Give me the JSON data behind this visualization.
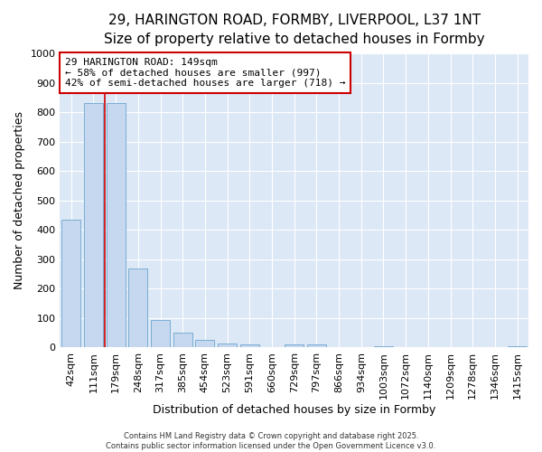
{
  "title_line1": "29, HARINGTON ROAD, FORMBY, LIVERPOOL, L37 1NT",
  "title_line2": "Size of property relative to detached houses in Formby",
  "categories": [
    "42sqm",
    "111sqm",
    "179sqm",
    "248sqm",
    "317sqm",
    "385sqm",
    "454sqm",
    "523sqm",
    "591sqm",
    "660sqm",
    "729sqm",
    "797sqm",
    "866sqm",
    "934sqm",
    "1003sqm",
    "1072sqm",
    "1140sqm",
    "1209sqm",
    "1278sqm",
    "1346sqm",
    "1415sqm"
  ],
  "values": [
    435,
    830,
    830,
    270,
    95,
    50,
    25,
    15,
    10,
    0,
    10,
    10,
    0,
    0,
    5,
    0,
    0,
    0,
    0,
    0,
    5
  ],
  "bar_color": "#c5d8ef",
  "bar_edge_color": "#7aadd4",
  "bar_edge_width": 0.7,
  "plot_bg_color": "#dce8f5",
  "fig_bg_color": "#ffffff",
  "grid_color": "#ffffff",
  "ylabel": "Number of detached properties",
  "xlabel": "Distribution of detached houses by size in Formby",
  "ylim": [
    0,
    1000
  ],
  "yticks": [
    0,
    100,
    200,
    300,
    400,
    500,
    600,
    700,
    800,
    900,
    1000
  ],
  "property_line_x": 1.5,
  "property_line_color": "#cc0000",
  "annotation_text": "29 HARINGTON ROAD: 149sqm\n← 58% of detached houses are smaller (997)\n42% of semi-detached houses are larger (718) →",
  "annotation_box_color": "#cc0000",
  "footer_line1": "Contains HM Land Registry data © Crown copyright and database right 2025.",
  "footer_line2": "Contains public sector information licensed under the Open Government Licence v3.0.",
  "title_fontsize": 11,
  "subtitle_fontsize": 10,
  "axis_label_fontsize": 9,
  "tick_fontsize": 8,
  "annotation_fontsize": 8
}
